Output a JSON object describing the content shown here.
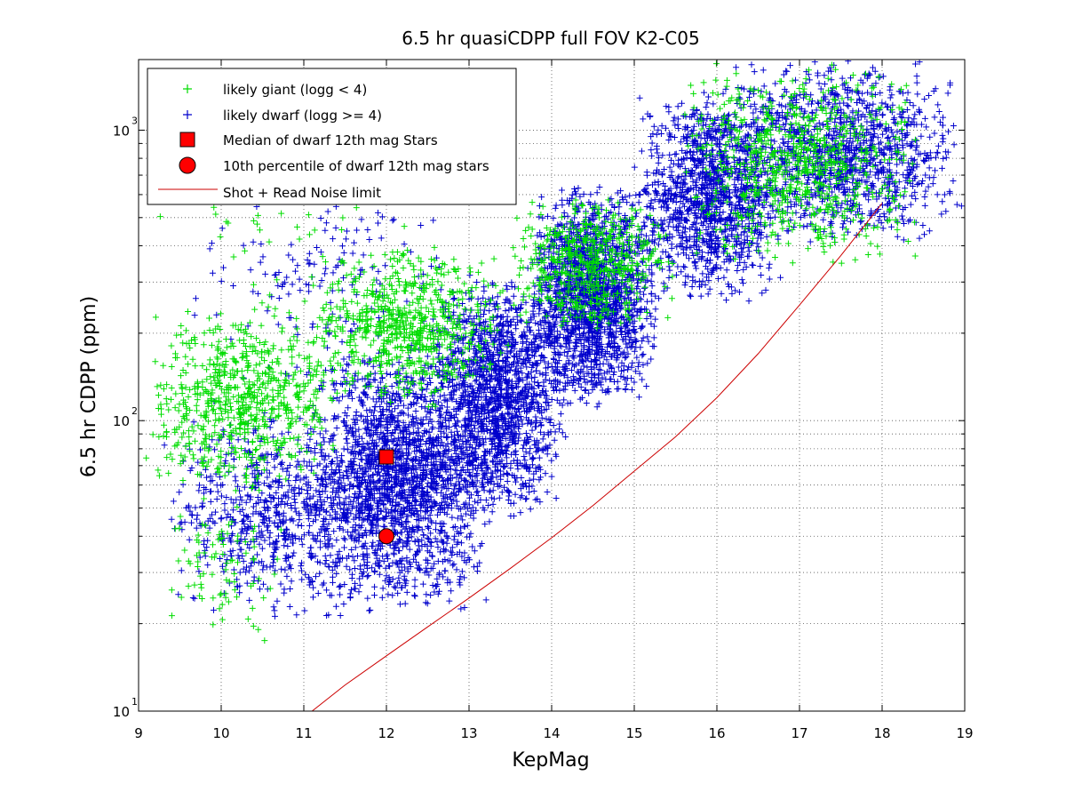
{
  "chart_data": {
    "type": "scatter",
    "title": "6.5 hr quasiCDPP full FOV K2-C05",
    "xlabel": "KepMag",
    "ylabel": "6.5 hr CDPP (ppm)",
    "xlim": [
      9,
      19
    ],
    "ylim": [
      10,
      1750
    ],
    "yscale": "log",
    "grid": true,
    "legend_position": "top-left",
    "x_ticks": [
      9,
      10,
      11,
      12,
      13,
      14,
      15,
      16,
      17,
      18,
      19
    ],
    "x_tick_labels": [
      "9",
      "10",
      "11",
      "12",
      "13",
      "14",
      "15",
      "16",
      "17",
      "18",
      "19"
    ],
    "y_ticks": [
      10,
      100,
      1000
    ],
    "y_tick_labels": [
      {
        "base": "10",
        "exp": "1"
      },
      {
        "base": "10",
        "exp": "2"
      },
      {
        "base": "10",
        "exp": "3"
      }
    ],
    "series": [
      {
        "name": "likely giant (logg < 4)",
        "marker": "plus",
        "color": "#00dd00",
        "cloud": [
          {
            "x": [
              9.0,
              11.5
            ],
            "y": [
              55,
              260
            ],
            "n": 700
          },
          {
            "x": [
              9.2,
              10.8
            ],
            "y": [
              17,
              60
            ],
            "n": 90
          },
          {
            "x": [
              11.0,
              13.5
            ],
            "y": [
              110,
              400
            ],
            "n": 700
          },
          {
            "x": [
              13.5,
              15.5
            ],
            "y": [
              200,
              600
            ],
            "n": 550
          },
          {
            "x": [
              15.5,
              18.5
            ],
            "y": [
              330,
              1750
            ],
            "n": 750
          },
          {
            "x": [
              9.2,
              12.5
            ],
            "y": [
              250,
              1200
            ],
            "n": 60
          }
        ]
      },
      {
        "name": "likely dwarf (logg >= 4)",
        "marker": "plus",
        "color": "#0000cc",
        "cloud": [
          {
            "x": [
              9.3,
              12.0
            ],
            "y": [
              20,
              110
            ],
            "n": 700
          },
          {
            "x": [
              11.0,
              13.3
            ],
            "y": [
              22,
              180
            ],
            "n": 1900
          },
          {
            "x": [
              12.5,
              14.2
            ],
            "y": [
              45,
              330
            ],
            "n": 1500
          },
          {
            "x": [
              13.7,
              15.3
            ],
            "y": [
              110,
              650
            ],
            "n": 1700
          },
          {
            "x": [
              15.0,
              16.8
            ],
            "y": [
              250,
              1400
            ],
            "n": 1200
          },
          {
            "x": [
              16.0,
              19.0
            ],
            "y": [
              400,
              1750
            ],
            "n": 1200
          },
          {
            "x": [
              9.5,
              13.0
            ],
            "y": [
              100,
              900
            ],
            "n": 180
          }
        ]
      },
      {
        "name": "Median of dwarf 12th mag Stars",
        "marker": "square",
        "color": "#ff0000",
        "points": [
          {
            "x": 12.0,
            "y": 75
          }
        ]
      },
      {
        "name": "10th percentile of dwarf 12th mag stars",
        "marker": "circle",
        "color": "#ff0000",
        "points": [
          {
            "x": 12.0,
            "y": 40
          }
        ]
      },
      {
        "name": "Shot + Read Noise limit",
        "marker": "line",
        "color": "#cc0000",
        "line": {
          "x": [
            11.1,
            11.5,
            12.0,
            12.5,
            13.0,
            13.5,
            14.0,
            14.5,
            15.0,
            15.5,
            16.0,
            16.5,
            17.0,
            17.5,
            18.0
          ],
          "y": [
            10,
            12.3,
            15.5,
            19.5,
            24.5,
            31,
            39.5,
            51,
            67,
            88,
            120,
            170,
            250,
            370,
            560
          ]
        }
      }
    ]
  },
  "legend": {
    "giant_label": "likely giant (logg < 4)",
    "dwarf_label": "likely dwarf (logg >= 4)",
    "median_label": "Median of dwarf 12th mag Stars",
    "percentile_label": "10th percentile of dwarf 12th mag stars",
    "noise_label": "Shot + Read Noise limit"
  }
}
